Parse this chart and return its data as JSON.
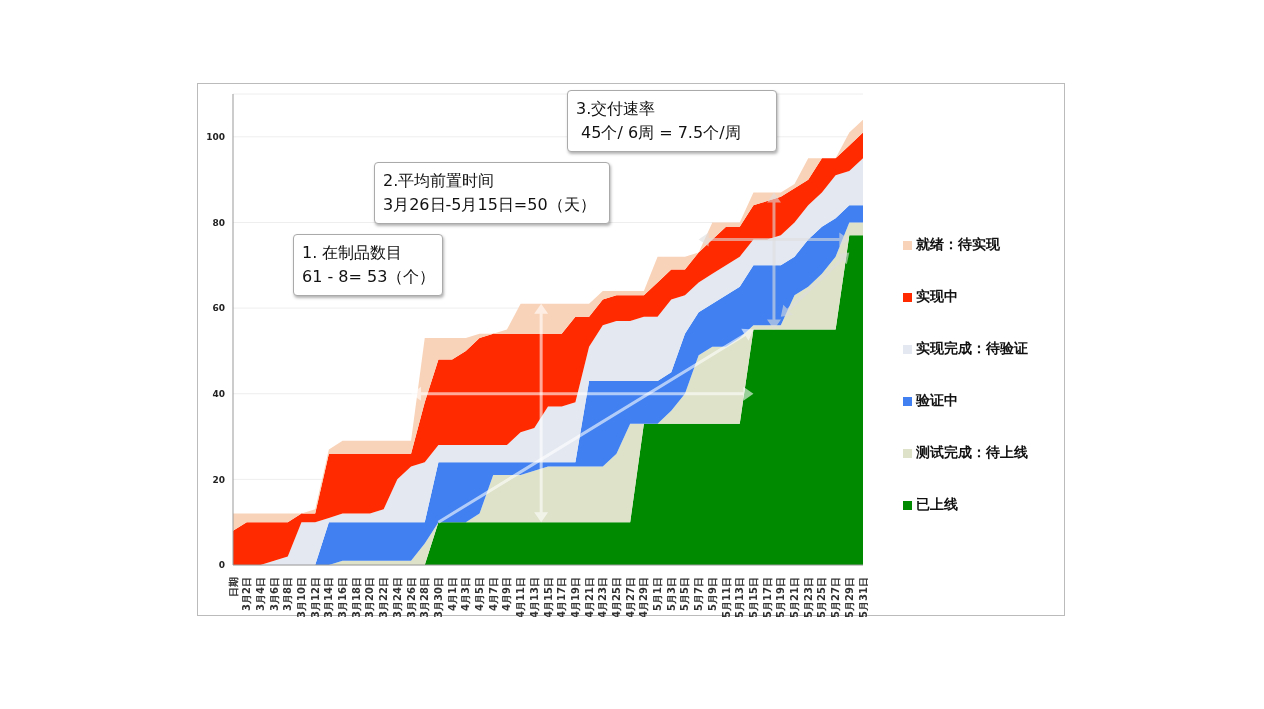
{
  "chart_data": {
    "type": "area",
    "stacked": true,
    "grid": "y",
    "legend": "right",
    "ylim": [
      0,
      110
    ],
    "yticks": [
      0,
      20,
      40,
      60,
      80,
      100
    ],
    "categories": [
      "日期",
      "3月2日",
      "3月4日",
      "3月6日",
      "3月8日",
      "3月10日",
      "3月12日",
      "3月14日",
      "3月16日",
      "3月18日",
      "3月20日",
      "3月22日",
      "3月24日",
      "3月26日",
      "3月28日",
      "3月30日",
      "4月1日",
      "4月3日",
      "4月5日",
      "4月7日",
      "4月9日",
      "4月11日",
      "4月13日",
      "4月15日",
      "4月17日",
      "4月19日",
      "4月21日",
      "4月23日",
      "4月25日",
      "4月27日",
      "4月29日",
      "5月1日",
      "5月3日",
      "5月5日",
      "5月7日",
      "5月9日",
      "5月11日",
      "5月13日",
      "5月15日",
      "5月17日",
      "5月19日",
      "5月21日",
      "5月23日",
      "5月25日",
      "5月27日",
      "5月29日",
      "5月31日"
    ],
    "series": [
      {
        "name": "已上线",
        "color": "#008a00",
        "values": [
          0,
          0,
          0,
          0,
          0,
          0,
          0,
          0,
          0,
          0,
          0,
          0,
          0,
          0,
          0,
          10,
          10,
          10,
          10,
          10,
          10,
          10,
          10,
          10,
          10,
          10,
          10,
          10,
          10,
          10,
          33,
          33,
          33,
          33,
          33,
          33,
          33,
          33,
          55,
          55,
          55,
          55,
          55,
          55,
          55,
          77,
          77
        ]
      },
      {
        "name": "测试完成：待上线",
        "color": "#dde2c8",
        "values": [
          0,
          0,
          0,
          0,
          0,
          0,
          0,
          0,
          1,
          1,
          1,
          1,
          1,
          1,
          5,
          0,
          0,
          0,
          2,
          11,
          11,
          11,
          12,
          13,
          13,
          13,
          13,
          13,
          16,
          23,
          0,
          0,
          3,
          7,
          16,
          18,
          18,
          20,
          1,
          1,
          1,
          8,
          10,
          13,
          17,
          3,
          3
        ]
      },
      {
        "name": "验证中",
        "color": "#4080f0",
        "values": [
          0,
          0,
          0,
          0,
          0,
          0,
          0,
          10,
          9,
          9,
          9,
          9,
          9,
          9,
          5,
          14,
          14,
          14,
          12,
          3,
          3,
          3,
          2,
          1,
          1,
          1,
          20,
          20,
          17,
          10,
          10,
          10,
          9,
          14,
          10,
          10,
          12,
          12,
          14,
          14,
          14,
          9,
          11,
          11,
          9,
          4,
          4
        ]
      },
      {
        "name": "实现完成：待验证",
        "color": "#e3e8f1",
        "values": [
          0,
          0,
          0,
          1,
          2,
          10,
          10,
          1,
          2,
          2,
          2,
          3,
          10,
          13,
          14,
          4,
          4,
          4,
          4,
          4,
          4,
          7,
          8,
          13,
          13,
          14,
          8,
          13,
          14,
          14,
          15,
          15,
          17,
          9,
          7,
          7,
          7,
          7,
          6,
          6,
          7,
          8,
          8,
          8,
          10,
          8,
          11
        ]
      },
      {
        "name": "实现中",
        "color": "#ff2a00",
        "values": [
          8,
          10,
          10,
          9,
          8,
          2,
          2,
          15,
          14,
          14,
          14,
          13,
          6,
          3,
          14,
          20,
          20,
          22,
          25,
          26,
          26,
          23,
          22,
          17,
          17,
          20,
          7,
          6,
          6,
          6,
          5,
          8,
          7,
          6,
          7,
          8,
          9,
          7,
          8,
          9,
          9,
          8,
          6,
          8,
          4,
          6,
          6
        ]
      },
      {
        "name": "就绪：待实现",
        "color": "#f9d3b9",
        "values": [
          4,
          2,
          2,
          2,
          2,
          0,
          1,
          1,
          3,
          3,
          3,
          3,
          3,
          3,
          15,
          5,
          5,
          3,
          1,
          0,
          1,
          7,
          7,
          7,
          7,
          3,
          3,
          2,
          1,
          1,
          1,
          6,
          3,
          3,
          0,
          4,
          1,
          1,
          3,
          2,
          1,
          1,
          5,
          0,
          0,
          3,
          3
        ]
      }
    ],
    "annotations": [
      "1. 在制品数目\n61 - 8= 53（个）",
      "2.平均前置时间\n3月26日-5月15日=50（天）",
      "3.交付速率\n 45个/ 6周 = 7.5个/周"
    ]
  }
}
